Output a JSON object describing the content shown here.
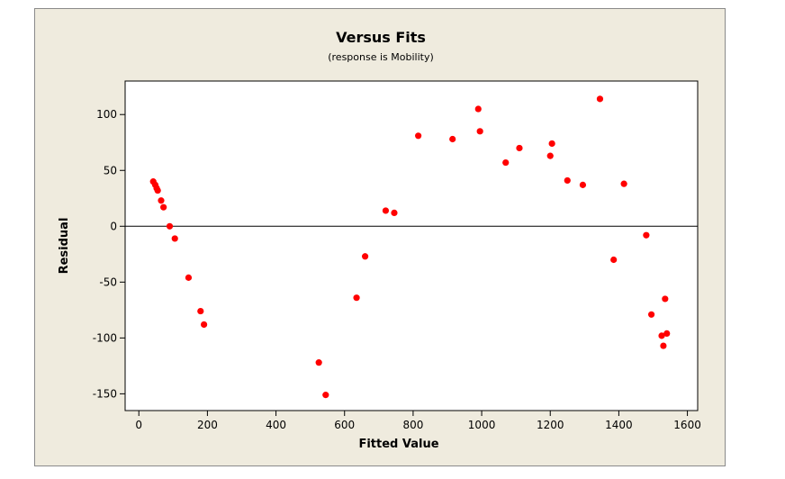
{
  "chart_data": {
    "type": "scatter",
    "title": "Versus Fits",
    "subtitle": "(response is Mobility)",
    "xlabel": "Fitted Value",
    "ylabel": "Residual",
    "xlim": [
      -40,
      1630
    ],
    "ylim": [
      -165,
      130
    ],
    "xticks": [
      0,
      200,
      400,
      600,
      800,
      1000,
      1200,
      1400,
      1600
    ],
    "yticks": [
      -150,
      -100,
      -50,
      0,
      50,
      100
    ],
    "reference_line_y": 0,
    "grid": false,
    "point_color": "#ff0000",
    "series": [
      {
        "x": [
          42,
          48,
          52,
          55,
          65,
          72,
          90,
          105,
          145,
          180,
          190,
          525,
          545,
          635,
          660,
          720,
          745,
          815,
          915,
          990,
          995,
          1070,
          1110,
          1200,
          1205,
          1250,
          1295,
          1345,
          1385,
          1415,
          1480,
          1495,
          1525,
          1530,
          1535,
          1540
        ],
        "y": [
          40,
          37,
          34,
          32,
          23,
          17,
          0,
          -11,
          -46,
          -76,
          -88,
          -122,
          -151,
          -64,
          -27,
          14,
          12,
          81,
          78,
          105,
          85,
          57,
          70,
          63,
          74,
          41,
          37,
          114,
          -30,
          38,
          -8,
          -79,
          -98,
          -107,
          -65,
          -96
        ]
      }
    ]
  }
}
